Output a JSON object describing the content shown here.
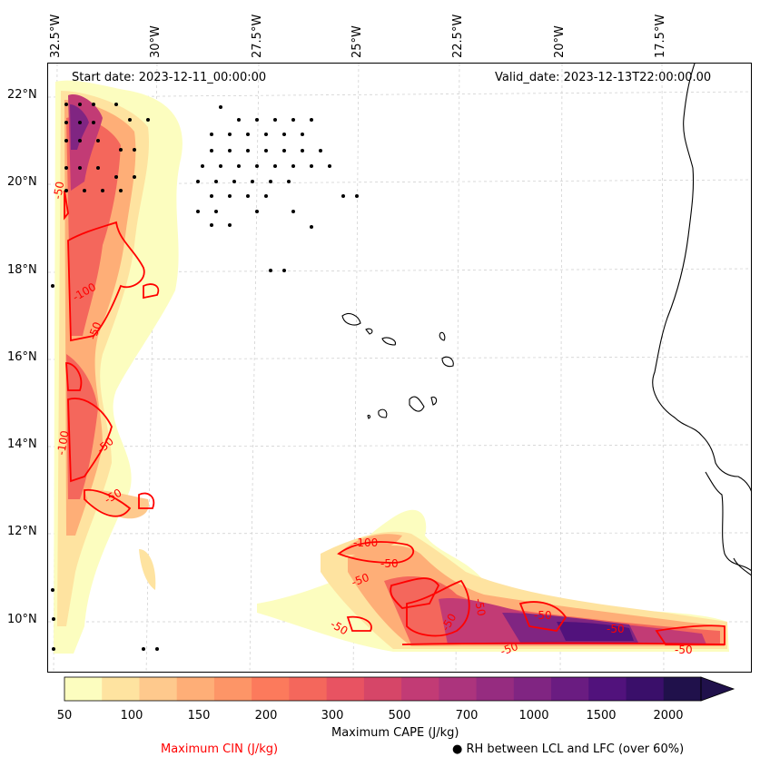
{
  "header": {
    "start": "Start date: 2023-12-11_00:00:00",
    "valid": "Valid_date: 2023-12-13T22:00:00.00"
  },
  "axes": {
    "top": [
      "32.5°W",
      "30°W",
      "27.5°W",
      "25°W",
      "22.5°W",
      "20°W",
      "17.5°W"
    ],
    "left": [
      "22°N",
      "20°N",
      "18°N",
      "16°N",
      "14°N",
      "12°N",
      "10°N"
    ]
  },
  "colorbar": {
    "title": "Maximum CAPE (J/kg)",
    "ticks": [
      "50",
      "100",
      "150",
      "200",
      "300",
      "500",
      "700",
      "1000",
      "1500",
      "2000"
    ],
    "colors": [
      "#fcfdbf",
      "#fee3a0",
      "#fec98d",
      "#feae77",
      "#fd9567",
      "#fc7a5c",
      "#f4675c",
      "#e85362",
      "#d64668",
      "#c23b75",
      "#ac347d",
      "#962c80",
      "#802582",
      "#6a1c81",
      "#51127c",
      "#3a0f6a",
      "#20114b"
    ]
  },
  "contour_labels": [
    "-50",
    "-100",
    "-50",
    "-100",
    "-50",
    "-50",
    "-100",
    "-50",
    "-50",
    "-50",
    "-50",
    "-50",
    "-50",
    "-50",
    "-50",
    "-50"
  ],
  "legend": {
    "cin": "Maximum CIN (J/kg)",
    "cin_color": "#ff0000",
    "rh": "● RH between LCL and LFC (over 60%)"
  }
}
